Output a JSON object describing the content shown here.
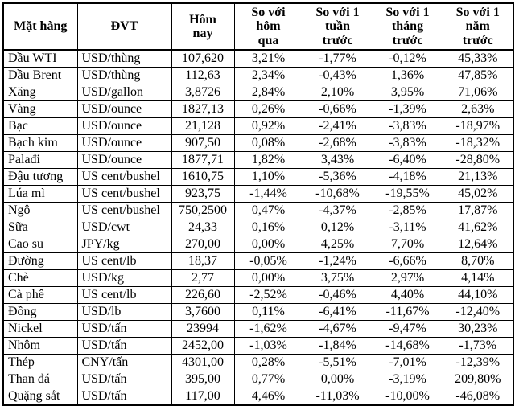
{
  "chart_data": {
    "type": "table",
    "title": "",
    "columns": [
      "Mặt hàng",
      "ĐVT",
      "Hôm nay",
      "So với hôm qua",
      "So với 1 tuần trước",
      "So với 1 tháng trước",
      "So với 1 năm trước"
    ],
    "column_display": [
      "Mặt hàng",
      "ĐVT",
      "Hôm\nnay",
      "So với\nhôm\nqua",
      "So với 1\ntuần\ntrước",
      "So với 1\ntháng\ntrước",
      "So với 1\nnăm\ntrước"
    ],
    "column_keys": [
      "commodity",
      "unit",
      "today",
      "vs-yesterday",
      "vs-1-week-ago",
      "vs-1-month-ago",
      "vs-1-year-ago"
    ],
    "rows": [
      [
        "Dầu WTI",
        "USD/thùng",
        "107,620",
        "3,21%",
        "-1,77%",
        "-0,12%",
        "45,33%"
      ],
      [
        "Dầu Brent",
        "USD/thùng",
        "112,63",
        "2,34%",
        "-0,43%",
        "1,36%",
        "47,85%"
      ],
      [
        "Xăng",
        "USD/gallon",
        "3,8726",
        "2,84%",
        "2,10%",
        "3,95%",
        "71,06%"
      ],
      [
        "Vàng",
        "USD/ounce",
        "1827,13",
        "0,26%",
        "-0,66%",
        "-1,39%",
        "2,63%"
      ],
      [
        "Bạc",
        "USD/ounce",
        "21,128",
        "0,92%",
        "-2,41%",
        "-3,83%",
        "-18,97%"
      ],
      [
        "Bạch kim",
        "USD/ounce",
        "907,50",
        "0,08%",
        "-2,68%",
        "-3,83%",
        "-18,32%"
      ],
      [
        "Palađi",
        "USD/ounce",
        "1877,71",
        "1,82%",
        "3,43%",
        "-6,40%",
        "-28,80%"
      ],
      [
        "Đậu tương",
        "US cent/bushel",
        "1610,75",
        "1,10%",
        "-5,36%",
        "-4,18%",
        "21,13%"
      ],
      [
        "Lúa mì",
        "US cent/bushel",
        "923,75",
        "-1,44%",
        "-10,68%",
        "-19,55%",
        "45,02%"
      ],
      [
        "Ngô",
        "US cent/bushel",
        "750,2500",
        "0,47%",
        "-4,37%",
        "-2,85%",
        "17,87%"
      ],
      [
        "Sữa",
        "USD/cwt",
        "24,33",
        "0,16%",
        "0,12%",
        "-3,11%",
        "41,62%"
      ],
      [
        "Cao su",
        "JPY/kg",
        "270,00",
        "0,00%",
        "4,25%",
        "7,70%",
        "12,64%"
      ],
      [
        "Đường",
        "US cent/lb",
        "18,37",
        "-0,05%",
        "-1,24%",
        "-6,66%",
        "8,70%"
      ],
      [
        "Chè",
        "USD/kg",
        "2,77",
        "0,00%",
        "3,75%",
        "2,97%",
        "4,14%"
      ],
      [
        "Cà phê",
        "US cent/lb",
        "226,60",
        "-2,52%",
        "-0,46%",
        "4,40%",
        "44,10%"
      ],
      [
        "Đồng",
        "USD/lb",
        "3,7600",
        "0,11%",
        "-6,41%",
        "-11,67%",
        "-12,40%"
      ],
      [
        "Nickel",
        "USD/tấn",
        "23994",
        "-1,62%",
        "-4,67%",
        "-9,47%",
        "30,23%"
      ],
      [
        "Nhôm",
        "USD/tấn",
        "2452,00",
        "-1,03%",
        "-1,84%",
        "-14,68%",
        "-1,73%"
      ],
      [
        "Thép",
        "CNY/tấn",
        "4301,00",
        "0,28%",
        "-5,51%",
        "-7,01%",
        "-12,39%"
      ],
      [
        "Than đá",
        "USD/tấn",
        "395,00",
        "0,77%",
        "0,00%",
        "-3,19%",
        "209,80%"
      ],
      [
        "Quặng sắt",
        "USD/tấn",
        "117,00",
        "4,46%",
        "-11,03%",
        "-10,00%",
        "-46,08%"
      ]
    ]
  }
}
